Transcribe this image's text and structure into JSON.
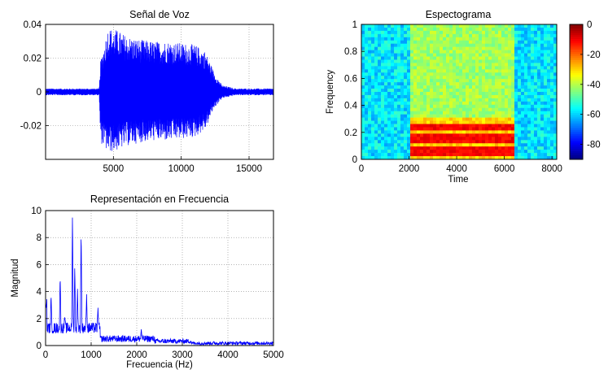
{
  "chart_data": [
    {
      "type": "line",
      "title": "Señal de Voz",
      "xlabel": "",
      "ylabel": "",
      "xlim": [
        0,
        16800
      ],
      "ylim": [
        -0.04,
        0.04
      ],
      "xticks": [
        5000,
        10000,
        15000
      ],
      "yticks": [
        0.04,
        0.02,
        0,
        -0.02
      ],
      "ytick_labels": [
        "0.04",
        "0.02",
        "0",
        "-0.02"
      ],
      "grid": true,
      "color": "#0000ff",
      "envelope": {
        "x": [
          0,
          3950,
          4050,
          4600,
          5200,
          6000,
          7000,
          8000,
          9000,
          10000,
          11000,
          11800,
          12400,
          13000,
          14000,
          16800
        ],
        "upper": [
          0.002,
          0.002,
          0.018,
          0.038,
          0.037,
          0.033,
          0.031,
          0.03,
          0.03,
          0.029,
          0.028,
          0.024,
          0.012,
          0.004,
          0.002,
          0.002
        ],
        "lower": [
          -0.002,
          -0.002,
          -0.03,
          -0.036,
          -0.035,
          -0.032,
          -0.03,
          -0.029,
          -0.029,
          -0.028,
          -0.027,
          -0.022,
          -0.01,
          -0.004,
          -0.002,
          -0.002
        ]
      }
    },
    {
      "type": "heatmap",
      "title": "Espectograma",
      "xlabel": "Time",
      "ylabel": "Frequency",
      "xlim": [
        0,
        8200
      ],
      "ylim": [
        0,
        1
      ],
      "xticks": [
        0,
        2000,
        4000,
        6000,
        8000
      ],
      "yticks": [
        0,
        0.2,
        0.4,
        0.6,
        0.8,
        1
      ],
      "ytick_labels": [
        "0",
        "0.2",
        "0.4",
        "0.6",
        "0.8",
        "1"
      ],
      "colorbar": {
        "min": -90,
        "max": 0,
        "ticks": [
          0,
          -20,
          -40,
          -60,
          -80
        ]
      },
      "speech_span": [
        2000,
        6400
      ],
      "harmonic_bands": [
        0.03,
        0.06,
        0.09,
        0.12,
        0.15,
        0.18,
        0.22,
        0.26
      ],
      "grid": false
    },
    {
      "type": "line",
      "title": "Representación en Frecuencia",
      "xlabel": "Frecuencia (Hz)",
      "ylabel": "Magnitud",
      "xlim": [
        0,
        5000
      ],
      "ylim": [
        0,
        10
      ],
      "xticks": [
        0,
        1000,
        2000,
        3000,
        4000,
        5000
      ],
      "yticks": [
        0,
        2,
        4,
        6,
        8,
        10
      ],
      "grid": true,
      "color": "#0000ff",
      "peaks": [
        {
          "x": 120,
          "y": 3.8
        },
        {
          "x": 320,
          "y": 5.3
        },
        {
          "x": 420,
          "y": 2.2
        },
        {
          "x": 590,
          "y": 10
        },
        {
          "x": 640,
          "y": 6.0
        },
        {
          "x": 700,
          "y": 4.2
        },
        {
          "x": 780,
          "y": 8.8
        },
        {
          "x": 900,
          "y": 3.8
        },
        {
          "x": 1150,
          "y": 2.8
        },
        {
          "x": 2100,
          "y": 1.2
        }
      ]
    }
  ]
}
